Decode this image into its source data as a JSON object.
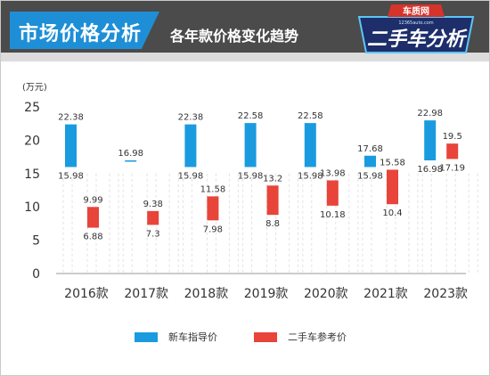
{
  "header": {
    "title": "市场价格分析",
    "subtitle": "各年款价格变化趋势",
    "badge_top": "车质网",
    "badge_url": "12365auto.com",
    "badge_main": "二手车分析"
  },
  "colors": {
    "new": "#1a9be0",
    "used": "#e8443a",
    "header_bg": "#4b4b4b",
    "accent": "#1e8fd6"
  },
  "chart_data": {
    "type": "bar",
    "unit_label": "(万元)",
    "ylim": [
      0,
      25
    ],
    "yticks": [
      "0",
      "5",
      "10",
      "15",
      "20",
      "25"
    ],
    "categories": [
      "2016款",
      "2017款",
      "2018款",
      "2019款",
      "2020款",
      "2021款",
      "2023款"
    ],
    "series": [
      {
        "name": "新车指导价",
        "high": [
          22.38,
          16.98,
          22.38,
          22.58,
          22.58,
          17.68,
          22.98
        ],
        "low": [
          15.98,
          16.98,
          15.98,
          15.98,
          15.98,
          15.98,
          16.98
        ],
        "high_labels": [
          "22.38",
          "16.98",
          "22.38",
          "22.58",
          "22.58",
          "17.68",
          "22.98"
        ],
        "low_labels": [
          "15.98",
          "",
          "15.98",
          "15.98",
          "15.98",
          "15.98",
          "16.98"
        ]
      },
      {
        "name": "二手车参考价",
        "high": [
          9.99,
          9.38,
          11.58,
          13.2,
          13.98,
          15.58,
          19.5
        ],
        "low": [
          6.88,
          7.3,
          7.98,
          8.8,
          10.18,
          10.4,
          17.19
        ],
        "high_labels": [
          "9.99",
          "9.38",
          "11.58",
          "13.2",
          "13.98",
          "15.58",
          "19.5"
        ],
        "low_labels": [
          "6.88",
          "7.3",
          "7.98",
          "8.8",
          "10.18",
          "10.4",
          "17.19"
        ]
      }
    ],
    "grid": false,
    "legend": "bottom-center"
  }
}
